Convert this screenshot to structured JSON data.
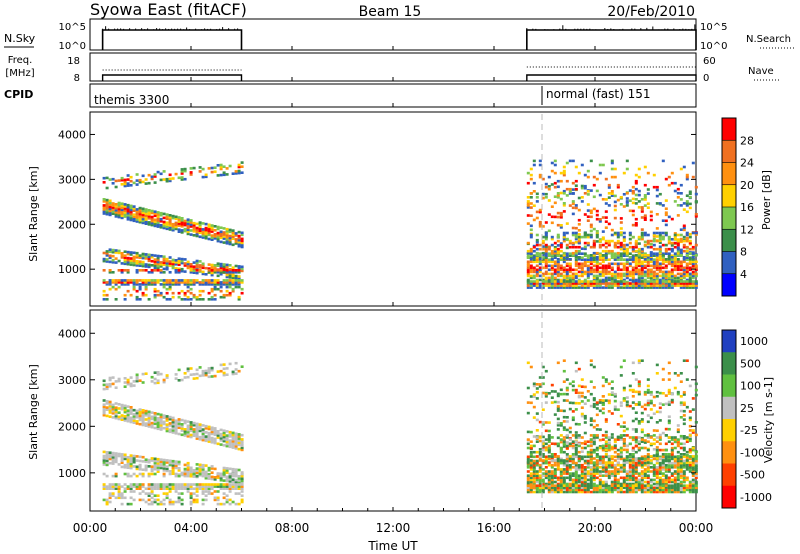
{
  "header": {
    "title": "Syowa East (fitACF)",
    "beam": "Beam 15",
    "date": "20/Feb/2010"
  },
  "top_panels": {
    "nsky_label": "N.Sky",
    "nsky_ticks": [
      "10^5",
      "10^0"
    ],
    "nsearch_label": "N.Search",
    "nsearch_ticks": [
      "10^5",
      "10^0"
    ],
    "freq_label_1": "Freq.",
    "freq_label_2": "[MHz]",
    "freq_ticks": [
      "18",
      "8"
    ],
    "nave_label": "Nave",
    "nave_ticks": [
      "60",
      "0"
    ],
    "cpid_label": "CPID",
    "cpid_1": "themis 3300",
    "cpid_2": "normal (fast) 151"
  },
  "chart_data": [
    {
      "type": "heatmap",
      "name": "power",
      "ylabel": "Slant Range [km]",
      "yticks": [
        "4000",
        "3000",
        "2000",
        "1000"
      ],
      "ylim": [
        180,
        4500
      ],
      "xlim": [
        0,
        24
      ],
      "colorbar_label": "Power [dB]",
      "colorbar_ticks": [
        "28",
        "24",
        "20",
        "16",
        "12",
        "8",
        "4"
      ],
      "colors": [
        "#0000ff",
        "#3060c0",
        "#3b8f4a",
        "#7ec850",
        "#ffd000",
        "#ff9010",
        "#f07020",
        "#ff0000"
      ],
      "data_hours": [
        [
          0.5,
          6.0
        ],
        [
          17.3,
          24.0
        ]
      ]
    },
    {
      "type": "heatmap",
      "name": "velocity",
      "ylabel": "Slant Range [km]",
      "yticks": [
        "4000",
        "3000",
        "2000",
        "1000"
      ],
      "ylim": [
        180,
        4500
      ],
      "xlim": [
        0,
        24
      ],
      "colorbar_label": "Velocity [m s-1]",
      "colorbar_ticks": [
        "1000",
        "500",
        "100",
        "25",
        "-25",
        "-100",
        "-500",
        "-1000"
      ],
      "colors": [
        "#2040c0",
        "#3b8f4a",
        "#60c040",
        "#c0c0c0",
        "#ffd000",
        "#ff9010",
        "#ff4000",
        "#ff0000"
      ],
      "data_hours": [
        [
          0.5,
          6.0
        ],
        [
          17.3,
          24.0
        ]
      ]
    }
  ],
  "xaxis": {
    "ticks": [
      "00:00",
      "04:00",
      "08:00",
      "12:00",
      "16:00",
      "20:00",
      "00:00"
    ],
    "label": "Time UT"
  }
}
